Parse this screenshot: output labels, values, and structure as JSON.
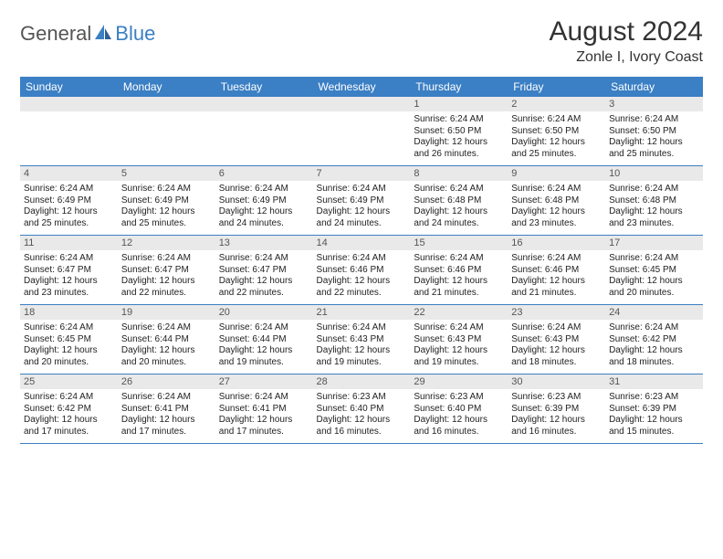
{
  "brand": {
    "part1": "General",
    "part2": "Blue"
  },
  "title": "August 2024",
  "subtitle": "Zonle I, Ivory Coast",
  "colors": {
    "header_bg": "#3b7fc4",
    "header_text": "#ffffff",
    "daynum_bg": "#e9e9e9",
    "daynum_text": "#555555",
    "row_divider": "#3b7fc4",
    "page_bg": "#ffffff",
    "body_text": "#222222"
  },
  "typography": {
    "title_fontsize": 30,
    "subtitle_fontsize": 16,
    "header_fontsize": 12,
    "cell_fontsize": 10
  },
  "day_headers": [
    "Sunday",
    "Monday",
    "Tuesday",
    "Wednesday",
    "Thursday",
    "Friday",
    "Saturday"
  ],
  "weeks": [
    [
      null,
      null,
      null,
      null,
      {
        "n": "1",
        "sunrise": "6:24 AM",
        "sunset": "6:50 PM",
        "daylight": "12 hours and 26 minutes."
      },
      {
        "n": "2",
        "sunrise": "6:24 AM",
        "sunset": "6:50 PM",
        "daylight": "12 hours and 25 minutes."
      },
      {
        "n": "3",
        "sunrise": "6:24 AM",
        "sunset": "6:50 PM",
        "daylight": "12 hours and 25 minutes."
      }
    ],
    [
      {
        "n": "4",
        "sunrise": "6:24 AM",
        "sunset": "6:49 PM",
        "daylight": "12 hours and 25 minutes."
      },
      {
        "n": "5",
        "sunrise": "6:24 AM",
        "sunset": "6:49 PM",
        "daylight": "12 hours and 25 minutes."
      },
      {
        "n": "6",
        "sunrise": "6:24 AM",
        "sunset": "6:49 PM",
        "daylight": "12 hours and 24 minutes."
      },
      {
        "n": "7",
        "sunrise": "6:24 AM",
        "sunset": "6:49 PM",
        "daylight": "12 hours and 24 minutes."
      },
      {
        "n": "8",
        "sunrise": "6:24 AM",
        "sunset": "6:48 PM",
        "daylight": "12 hours and 24 minutes."
      },
      {
        "n": "9",
        "sunrise": "6:24 AM",
        "sunset": "6:48 PM",
        "daylight": "12 hours and 23 minutes."
      },
      {
        "n": "10",
        "sunrise": "6:24 AM",
        "sunset": "6:48 PM",
        "daylight": "12 hours and 23 minutes."
      }
    ],
    [
      {
        "n": "11",
        "sunrise": "6:24 AM",
        "sunset": "6:47 PM",
        "daylight": "12 hours and 23 minutes."
      },
      {
        "n": "12",
        "sunrise": "6:24 AM",
        "sunset": "6:47 PM",
        "daylight": "12 hours and 22 minutes."
      },
      {
        "n": "13",
        "sunrise": "6:24 AM",
        "sunset": "6:47 PM",
        "daylight": "12 hours and 22 minutes."
      },
      {
        "n": "14",
        "sunrise": "6:24 AM",
        "sunset": "6:46 PM",
        "daylight": "12 hours and 22 minutes."
      },
      {
        "n": "15",
        "sunrise": "6:24 AM",
        "sunset": "6:46 PM",
        "daylight": "12 hours and 21 minutes."
      },
      {
        "n": "16",
        "sunrise": "6:24 AM",
        "sunset": "6:46 PM",
        "daylight": "12 hours and 21 minutes."
      },
      {
        "n": "17",
        "sunrise": "6:24 AM",
        "sunset": "6:45 PM",
        "daylight": "12 hours and 20 minutes."
      }
    ],
    [
      {
        "n": "18",
        "sunrise": "6:24 AM",
        "sunset": "6:45 PM",
        "daylight": "12 hours and 20 minutes."
      },
      {
        "n": "19",
        "sunrise": "6:24 AM",
        "sunset": "6:44 PM",
        "daylight": "12 hours and 20 minutes."
      },
      {
        "n": "20",
        "sunrise": "6:24 AM",
        "sunset": "6:44 PM",
        "daylight": "12 hours and 19 minutes."
      },
      {
        "n": "21",
        "sunrise": "6:24 AM",
        "sunset": "6:43 PM",
        "daylight": "12 hours and 19 minutes."
      },
      {
        "n": "22",
        "sunrise": "6:24 AM",
        "sunset": "6:43 PM",
        "daylight": "12 hours and 19 minutes."
      },
      {
        "n": "23",
        "sunrise": "6:24 AM",
        "sunset": "6:43 PM",
        "daylight": "12 hours and 18 minutes."
      },
      {
        "n": "24",
        "sunrise": "6:24 AM",
        "sunset": "6:42 PM",
        "daylight": "12 hours and 18 minutes."
      }
    ],
    [
      {
        "n": "25",
        "sunrise": "6:24 AM",
        "sunset": "6:42 PM",
        "daylight": "12 hours and 17 minutes."
      },
      {
        "n": "26",
        "sunrise": "6:24 AM",
        "sunset": "6:41 PM",
        "daylight": "12 hours and 17 minutes."
      },
      {
        "n": "27",
        "sunrise": "6:24 AM",
        "sunset": "6:41 PM",
        "daylight": "12 hours and 17 minutes."
      },
      {
        "n": "28",
        "sunrise": "6:23 AM",
        "sunset": "6:40 PM",
        "daylight": "12 hours and 16 minutes."
      },
      {
        "n": "29",
        "sunrise": "6:23 AM",
        "sunset": "6:40 PM",
        "daylight": "12 hours and 16 minutes."
      },
      {
        "n": "30",
        "sunrise": "6:23 AM",
        "sunset": "6:39 PM",
        "daylight": "12 hours and 16 minutes."
      },
      {
        "n": "31",
        "sunrise": "6:23 AM",
        "sunset": "6:39 PM",
        "daylight": "12 hours and 15 minutes."
      }
    ]
  ]
}
